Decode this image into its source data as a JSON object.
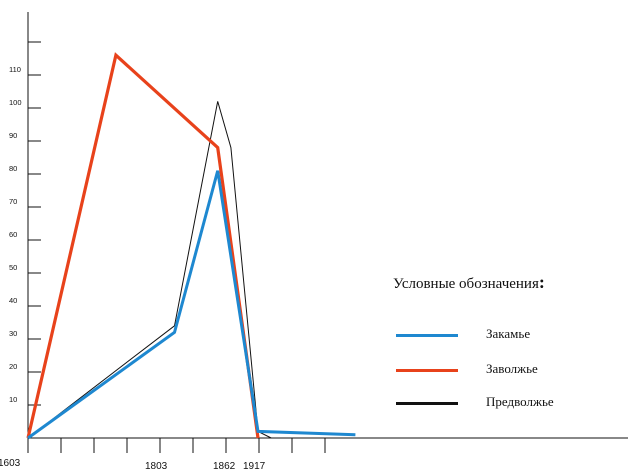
{
  "chart_data": {
    "type": "line",
    "x": [
      1603,
      1803,
      1862,
      1917
    ],
    "x_tick_labels": [
      "1603",
      "1803",
      "1862",
      "1917"
    ],
    "y_tick_labels": [
      "10",
      "20",
      "30",
      "40",
      "50",
      "60",
      "70",
      "80",
      "90",
      "100",
      "110"
    ],
    "ylim": [
      0,
      120
    ],
    "series": [
      {
        "name": "Закамье",
        "color": "#1e88d0",
        "points": [
          [
            1603,
            0
          ],
          [
            1803,
            32
          ],
          [
            1862,
            81
          ],
          [
            1917,
            2
          ],
          [
            2050,
            1
          ]
        ]
      },
      {
        "name": "Заволжье",
        "color": "#e8421b",
        "points": [
          [
            1603,
            0
          ],
          [
            1723,
            116
          ],
          [
            1862,
            88
          ],
          [
            1917,
            0
          ]
        ]
      },
      {
        "name": "Предволжье",
        "color": "#111111",
        "points": [
          [
            1603,
            0
          ],
          [
            1803,
            34
          ],
          [
            1862,
            102
          ],
          [
            1880,
            88
          ],
          [
            1917,
            2
          ],
          [
            1935,
            0
          ]
        ]
      }
    ],
    "legend_title": "Условные обозначения",
    "legend_colon": ":"
  }
}
